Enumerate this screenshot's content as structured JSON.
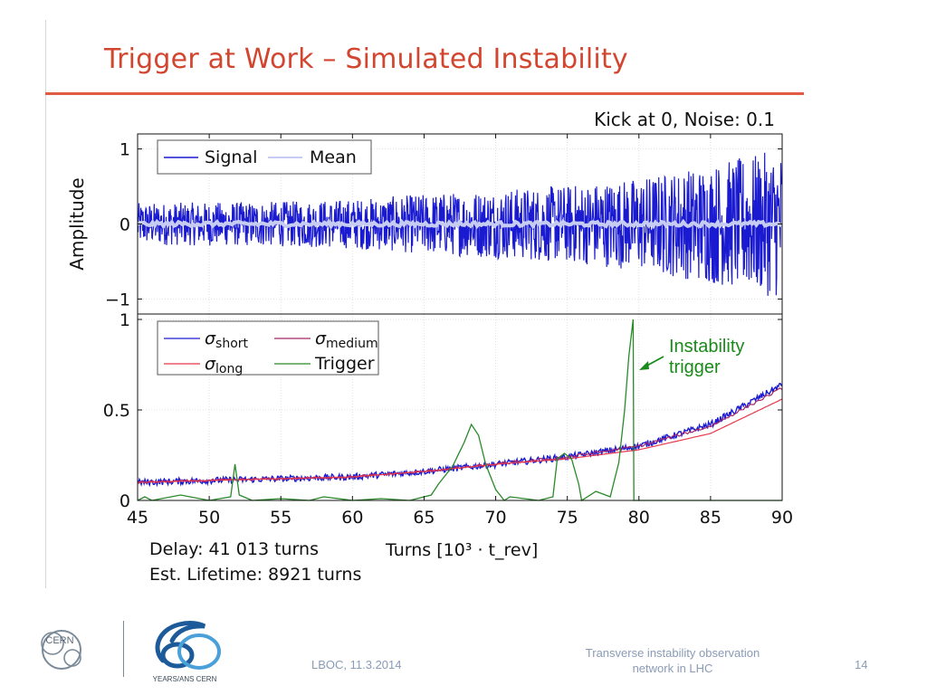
{
  "slide": {
    "title": "Trigger at Work – Simulated Instability",
    "footer_date": "LBOC, 11.3.2014",
    "footer_title_line1": "Transverse instability observation",
    "footer_title_line2": "network in LHC",
    "page_number": "14",
    "logo1_text": "CERN",
    "logo2_text": "YEARS/ANS CERN",
    "delay_text": "Delay:  41 013 turns",
    "lifetime_text": "Est.  Lifetime:  8921 turns",
    "annotation_line1": "Instability",
    "annotation_line2": "trigger",
    "accent_color": "#d2452f"
  },
  "chart_data": [
    {
      "type": "line",
      "title": "Kick at 0, Noise: 0.1",
      "ylabel": "Amplitude",
      "xlim": [
        45,
        90
      ],
      "ylim": [
        -1.2,
        1.2
      ],
      "yticks": [
        -1,
        0,
        1
      ],
      "ytick_labels": [
        "−1",
        "0",
        "1"
      ],
      "grid": true,
      "legend": "top-left",
      "series": [
        {
          "name": "Signal",
          "color": "#1a1ad0",
          "envelope_x": [
            45,
            55,
            60,
            65,
            70,
            75,
            80,
            85,
            90
          ],
          "envelope_amp": [
            0.28,
            0.3,
            0.33,
            0.4,
            0.46,
            0.52,
            0.62,
            0.8,
            1.0
          ]
        },
        {
          "name": "Mean",
          "color": "#c7cdf2",
          "values_approx": 0
        }
      ]
    },
    {
      "type": "line",
      "xlabel": "Turns [10³ · t_rev]",
      "xticks": [
        45,
        50,
        55,
        60,
        65,
        70,
        75,
        80,
        85,
        90
      ],
      "xlim": [
        45,
        90
      ],
      "ylim": [
        0,
        1.03
      ],
      "yticks": [
        0,
        0.5,
        1
      ],
      "ytick_labels": [
        "0",
        "0.5",
        "1"
      ],
      "grid": true,
      "legend": "top-left",
      "legend_labels": [
        {
          "sym": "σ",
          "sub": "short"
        },
        {
          "sym": "σ",
          "sub": "medium"
        },
        {
          "sym": "σ",
          "sub": "long"
        },
        {
          "sym": "",
          "sub": "Trigger"
        }
      ],
      "series": [
        {
          "name": "σshort",
          "color": "#1a1ad0",
          "x": [
            45,
            50,
            55,
            60,
            65,
            70,
            75,
            80,
            85,
            90
          ],
          "values": [
            0.1,
            0.11,
            0.12,
            0.13,
            0.16,
            0.2,
            0.24,
            0.3,
            0.42,
            0.64
          ]
        },
        {
          "name": "σmedium",
          "color": "#a6266c",
          "x": [
            45,
            50,
            55,
            60,
            65,
            70,
            75,
            80,
            85,
            90
          ],
          "values": [
            0.1,
            0.11,
            0.12,
            0.13,
            0.16,
            0.2,
            0.24,
            0.3,
            0.41,
            0.62
          ]
        },
        {
          "name": "σlong",
          "color": "#e8384a",
          "x": [
            45,
            50,
            55,
            60,
            65,
            70,
            75,
            80,
            85,
            90
          ],
          "values": [
            0.1,
            0.11,
            0.12,
            0.13,
            0.16,
            0.2,
            0.23,
            0.28,
            0.37,
            0.56
          ]
        },
        {
          "name": "Trigger",
          "color": "#2a8a2a",
          "x": [
            45,
            45.5,
            46,
            48,
            50,
            51.5,
            51.8,
            52.1,
            53,
            55,
            57,
            58,
            60,
            62,
            64,
            65.5,
            66,
            67,
            67.8,
            68.3,
            68.8,
            69.3,
            70,
            70.6,
            71,
            73,
            74,
            74.3,
            74.8,
            75.3,
            75.8,
            76,
            77,
            78,
            78.6,
            79,
            79.3,
            79.6,
            79.65,
            90
          ],
          "values": [
            0,
            0.02,
            0,
            0.03,
            0,
            0.02,
            0.2,
            0.03,
            0,
            0.01,
            0,
            0.02,
            0,
            0.01,
            0,
            0.03,
            0.09,
            0.19,
            0.32,
            0.42,
            0.36,
            0.2,
            0.06,
            0,
            0.02,
            0,
            0.02,
            0.23,
            0.26,
            0.23,
            0.09,
            0,
            0.05,
            0.02,
            0.21,
            0.5,
            0.8,
            1.0,
            0,
            0
          ]
        }
      ]
    }
  ]
}
